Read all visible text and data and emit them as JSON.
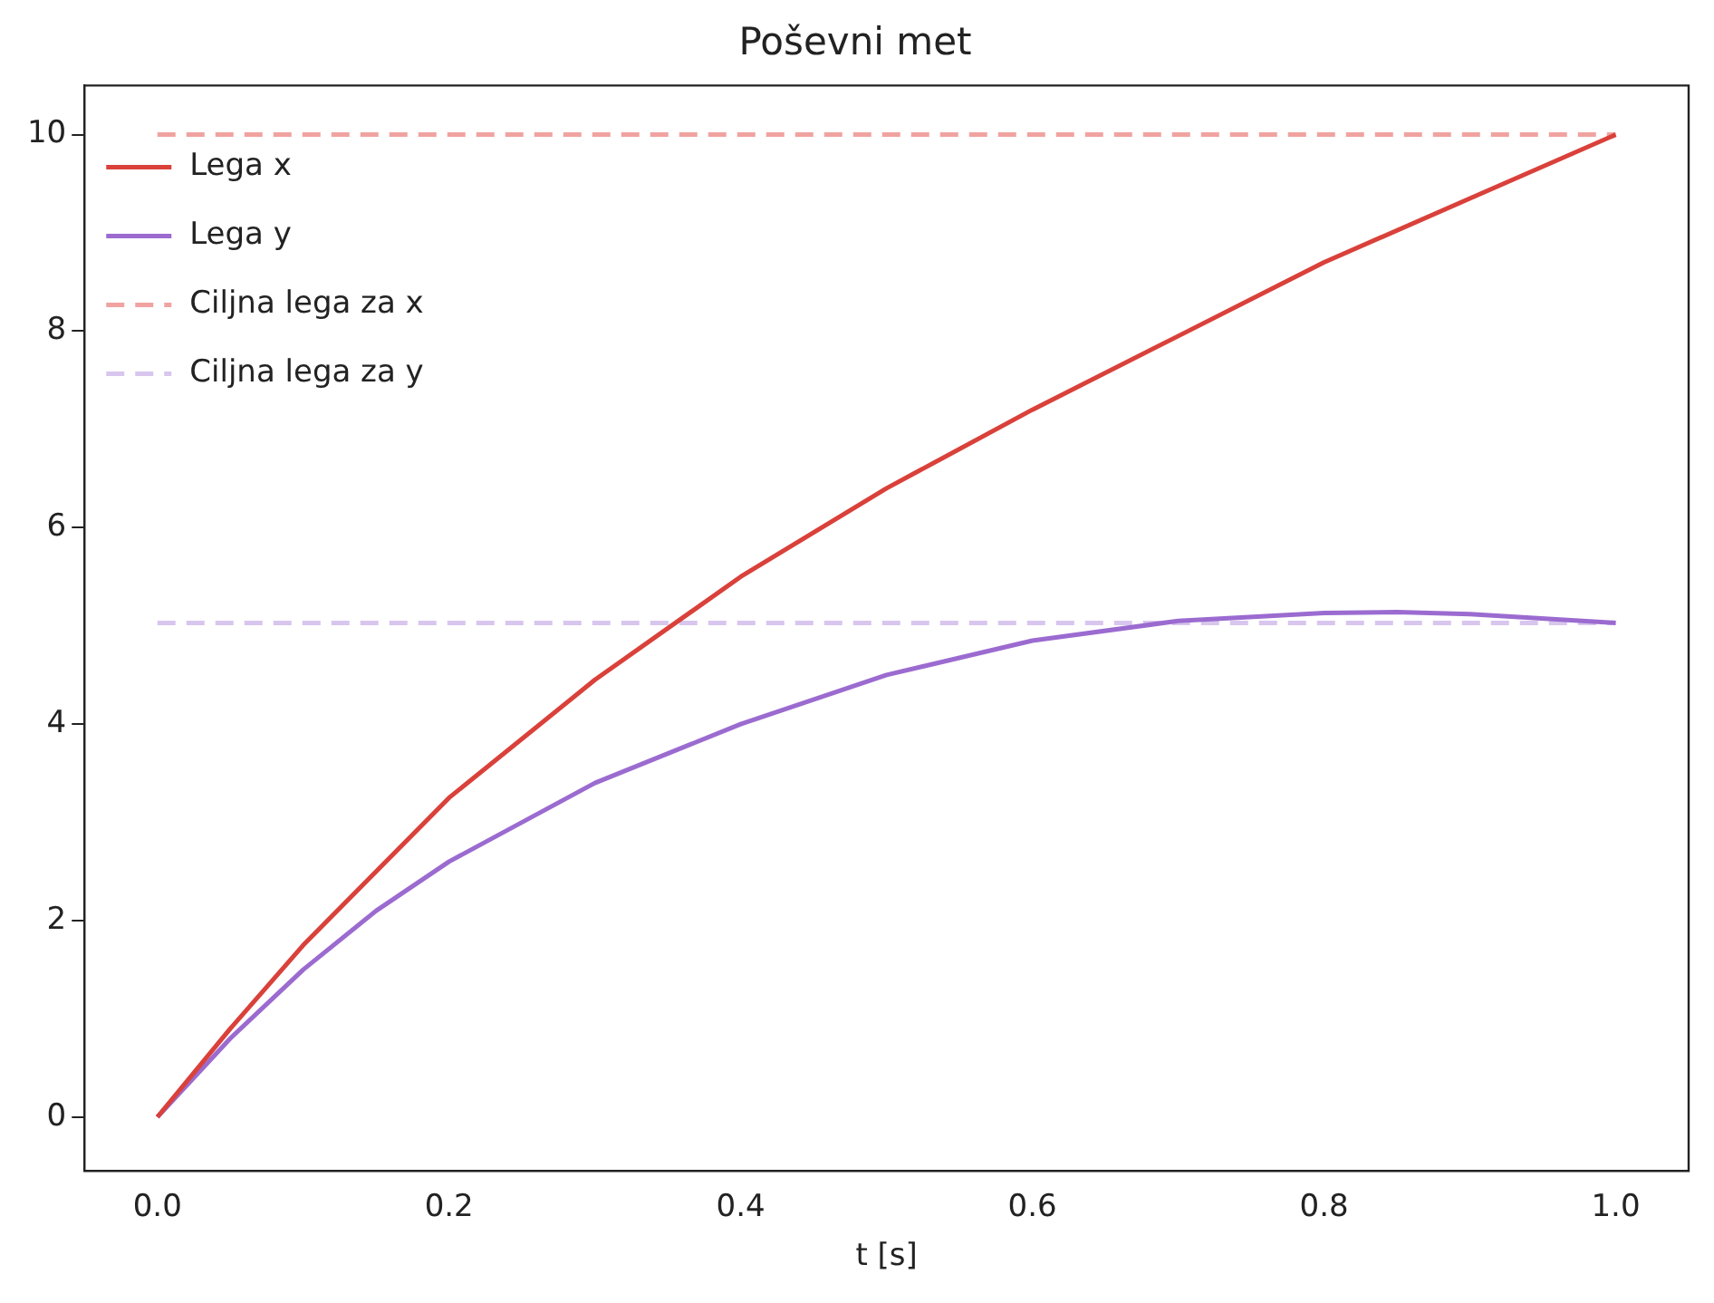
{
  "chart_data": {
    "type": "line",
    "title": "Poševni met",
    "xlabel": "t [s]",
    "xlim": [
      -0.05,
      1.05
    ],
    "xticks": [
      {
        "value": 0,
        "label": "0.0"
      },
      {
        "value": 0.2,
        "label": "0.2"
      },
      {
        "value": 0.4,
        "label": "0.4"
      },
      {
        "value": 0.6,
        "label": "0.6"
      },
      {
        "value": 0.8,
        "label": "0.8"
      },
      {
        "value": 1,
        "label": "1.0"
      }
    ],
    "ylim": [
      -0.55,
      10.5
    ],
    "yticks": [
      0,
      2,
      4,
      6,
      8,
      10
    ],
    "grid": false,
    "legend": "top left",
    "marker": "none",
    "series": [
      {
        "name": "Lega x",
        "color": "#d9413a",
        "line_style": "solid",
        "x": [
          0,
          0.05,
          0.1,
          0.15,
          0.2,
          0.3,
          0.4,
          0.5,
          0.6,
          0.7,
          0.8,
          0.9,
          1.0
        ],
        "values": [
          0,
          0.9,
          1.75,
          2.5,
          3.25,
          4.45,
          5.5,
          6.4,
          7.2,
          7.95,
          8.7,
          9.35,
          10
        ]
      },
      {
        "name": "Lega y",
        "color": "#9b6bd0",
        "line_style": "solid",
        "x": [
          0,
          0.05,
          0.1,
          0.15,
          0.2,
          0.3,
          0.4,
          0.5,
          0.6,
          0.7,
          0.8,
          0.85,
          0.9,
          1.0
        ],
        "values": [
          0,
          0.8,
          1.5,
          2.1,
          2.6,
          3.4,
          4.0,
          4.5,
          4.85,
          5.05,
          5.13,
          5.14,
          5.12,
          5.03
        ]
      },
      {
        "name": "Ciljna lega za x",
        "color": "#f0a3a0",
        "line_style": "dashed",
        "x": [
          0,
          1
        ],
        "values": [
          10,
          10
        ]
      },
      {
        "name": "Ciljna lega za y",
        "color": "#d8c6ee",
        "line_style": "dashed",
        "x": [
          0,
          1
        ],
        "values": [
          5.03,
          5.03
        ]
      }
    ]
  }
}
